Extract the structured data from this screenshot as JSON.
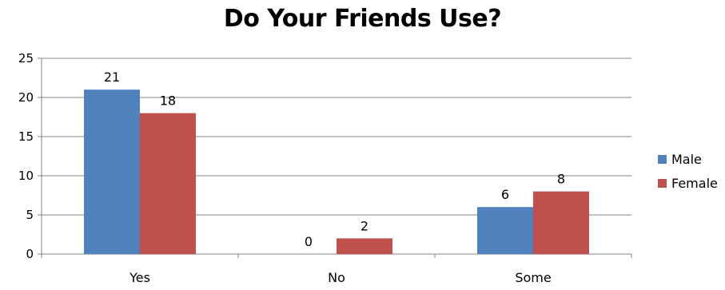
{
  "chart_data": {
    "type": "bar",
    "title": "Do Your Friends Use?",
    "xlabel": "",
    "ylabel": "",
    "categories": [
      "Yes",
      "No",
      "Some"
    ],
    "series": [
      {
        "name": "Male",
        "color": "#4F81BD",
        "values": [
          21,
          0,
          6
        ]
      },
      {
        "name": "Female",
        "color": "#C0504D",
        "values": [
          18,
          2,
          8
        ]
      }
    ],
    "ylim": [
      0,
      25
    ],
    "yticks": [
      "0",
      "5",
      "10",
      "15",
      "20",
      "25"
    ],
    "grid": true,
    "legend": "right",
    "data_labels": true
  }
}
